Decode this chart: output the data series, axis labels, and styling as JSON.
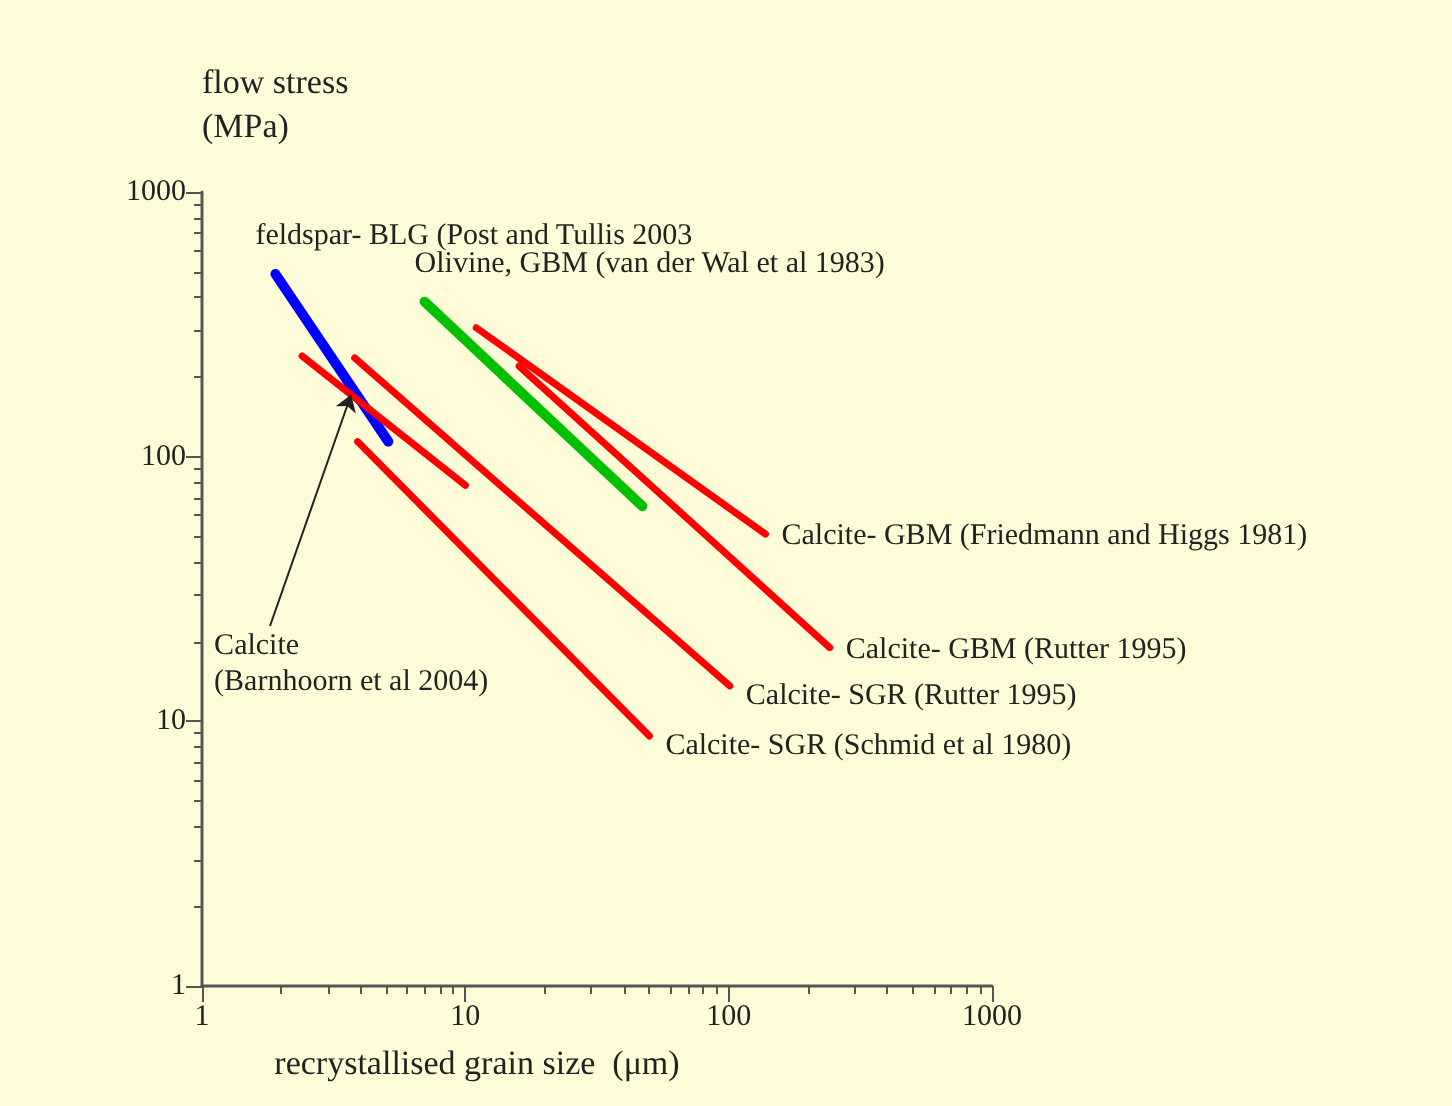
{
  "chart_data": {
    "type": "line",
    "xlabel": "recrystallised grain size  (μm)",
    "ylabel": "flow stress\n(MPa)",
    "log": "xy",
    "xlim": [
      1,
      1000
    ],
    "ylim": [
      1,
      1000
    ],
    "xticks": [
      1,
      10,
      100,
      1000
    ],
    "yticks": [
      1,
      10,
      100,
      1000
    ],
    "grid": false,
    "marker": "none",
    "line_style": "solid",
    "series": [
      {
        "name": "feldspar- BLG (Post and Tullis 2003",
        "color": "#0000ff",
        "x": [
          1.9,
          5.1
        ],
        "values": [
          490,
          114
        ]
      },
      {
        "name": "Olivine, GBM (van der Wal et al 1983)",
        "color": "#00c000",
        "x": [
          7,
          47
        ],
        "values": [
          385,
          65
        ]
      },
      {
        "name": "Calcite\n(Barnhoorn et al 2004)",
        "color": "#ff0000",
        "x": [
          2.4,
          10
        ],
        "values": [
          240,
          78
        ]
      },
      {
        "name": "Calcite- GBM (Friedmann and Higgs 1981)",
        "color": "#ff0000",
        "x": [
          11,
          138
        ],
        "values": [
          307,
          51
        ]
      },
      {
        "name": "Calcite- GBM (Rutter 1995)",
        "color": "#ff0000",
        "x": [
          16,
          242
        ],
        "values": [
          220,
          19
        ]
      },
      {
        "name": "Calcite- SGR (Rutter 1995)",
        "color": "#ff0000",
        "x": [
          3.8,
          101
        ],
        "values": [
          236,
          13.6
        ]
      },
      {
        "name": "Calcite- SGR (Schmid et al 1980)",
        "color": "#ff0000",
        "x": [
          3.9,
          50
        ],
        "values": [
          114,
          8.8
        ]
      }
    ]
  }
}
